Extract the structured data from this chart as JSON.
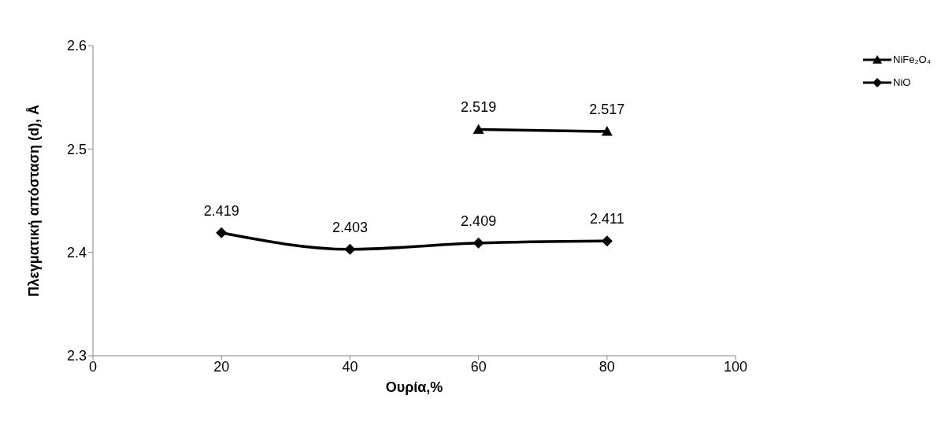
{
  "chart_data": {
    "type": "line",
    "xlabel": "Ουρία,%",
    "ylabel": "Πλεγματική απόσταση (d), Å",
    "series": [
      {
        "name": "NiFe₂O₄",
        "color": "#000000",
        "x": [
          60,
          80
        ],
        "values": [
          2.519,
          2.517
        ],
        "marker": "triangle"
      },
      {
        "name": "NiO",
        "color": "#000000",
        "x": [
          20,
          40,
          60,
          80
        ],
        "values": [
          2.419,
          2.403,
          2.409,
          2.411
        ],
        "marker": "diamond"
      }
    ],
    "xlim": [
      0,
      100
    ],
    "xticks": [
      0,
      20,
      40,
      60,
      80,
      100
    ],
    "ylim": [
      2.3,
      2.6
    ],
    "yticks": [
      2.3,
      2.4,
      2.5,
      2.6
    ],
    "grid": false,
    "legend": "right",
    "data_labels": true,
    "line_style": "solid"
  }
}
